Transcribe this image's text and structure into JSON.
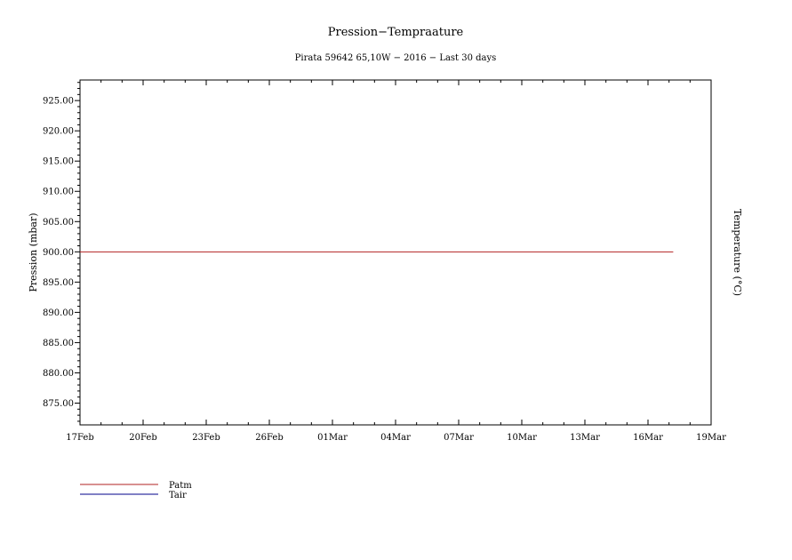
{
  "chart_data": {
    "type": "line",
    "title": "Pression−Tempraature",
    "subtitle": "Pirata 59642 65,10W − 2016 − Last 30 days",
    "ylabel": "Pression (mbar)",
    "ylabel_right": "Temperature (°C)",
    "ylim": [
      871.4,
      928.4
    ],
    "y_ticks": [
      875,
      880,
      885,
      890,
      895,
      900,
      905,
      910,
      915,
      920,
      925
    ],
    "y_tick_labels": [
      "875.00",
      "880.00",
      "885.00",
      "890.00",
      "895.00",
      "900.00",
      "905.00",
      "910.00",
      "915.00",
      "920.00",
      "925.00"
    ],
    "xlim": [
      0,
      30
    ],
    "x_ticks": [
      0,
      3,
      6,
      9,
      12,
      15,
      18,
      21,
      24,
      27,
      30
    ],
    "x_tick_labels": [
      "17Feb",
      "20Feb",
      "23Feb",
      "26Feb",
      "01Mar",
      "04Mar",
      "07Mar",
      "10Mar",
      "13Mar",
      "16Mar",
      "19Mar"
    ],
    "series": [
      {
        "name": "Patm",
        "color": "#b22222",
        "x": [
          0,
          28.2
        ],
        "values": [
          900.0,
          900.0
        ]
      },
      {
        "name": "Tair",
        "color": "#00008b",
        "x": [],
        "values": []
      }
    ],
    "legend": "bottom-left"
  }
}
